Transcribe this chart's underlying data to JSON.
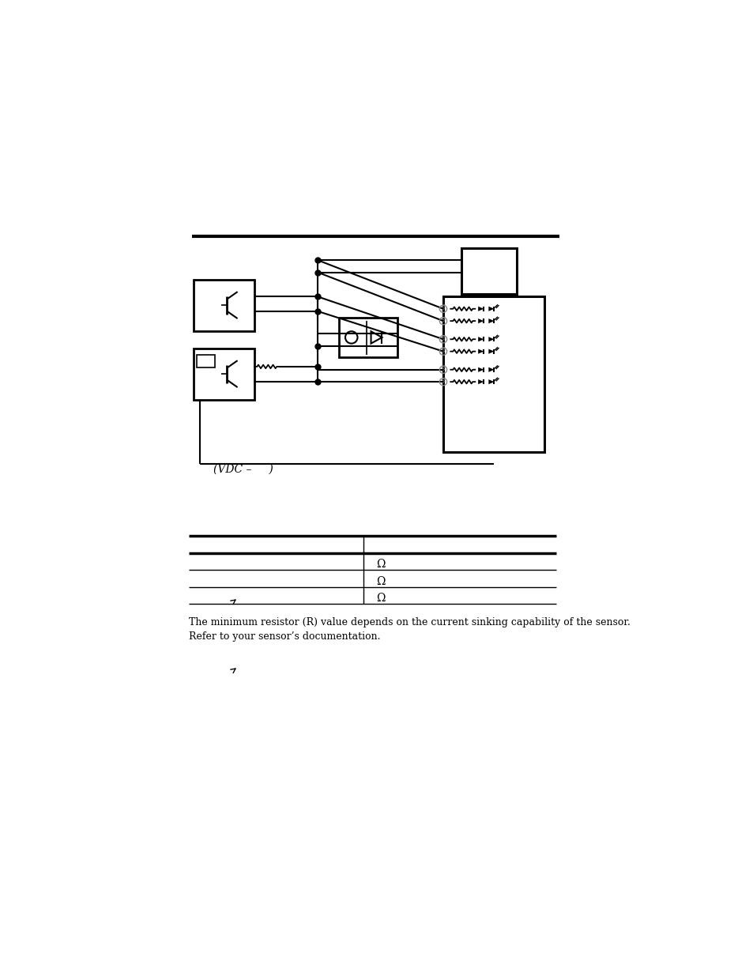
{
  "bg_color": "#ffffff",
  "line_color": "#000000",
  "table_rows": [
    [
      "",
      "Ω"
    ],
    [
      "",
      "Ω"
    ],
    [
      "",
      "Ω"
    ]
  ],
  "note_text": "The minimum resistor (R) value depends on the current sinking capability of the sensor.\nRefer to your sensor’s documentation.",
  "vdc_label": "(VDC –     )"
}
